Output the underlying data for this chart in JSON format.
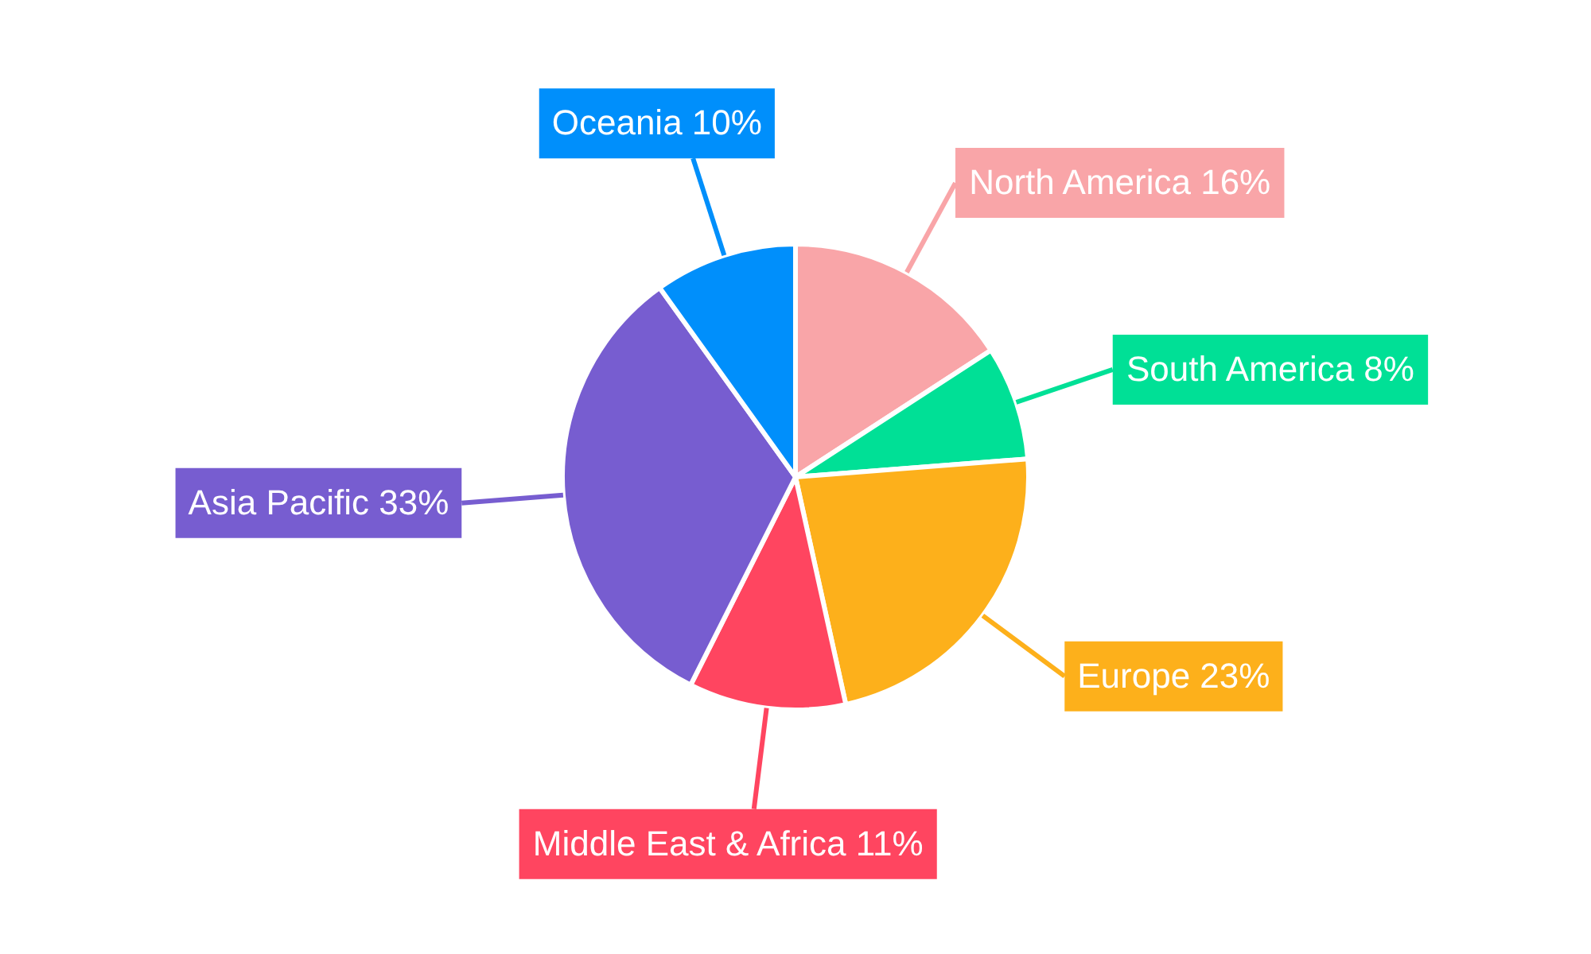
{
  "chart_data": {
    "type": "pie",
    "categories": [
      "North America",
      "South America",
      "Europe",
      "Middle East & Africa",
      "Asia Pacific",
      "Oceania"
    ],
    "values": [
      16,
      8,
      23,
      11,
      33,
      10
    ],
    "value_labels": [
      "16%",
      "8%",
      "23%",
      "11%",
      "33%",
      "10%"
    ],
    "colors": [
      "#f9a5a8",
      "#00e096",
      "#fdb01b",
      "#ff4560",
      "#775dd0",
      "#008ffb"
    ],
    "legend": false
  }
}
